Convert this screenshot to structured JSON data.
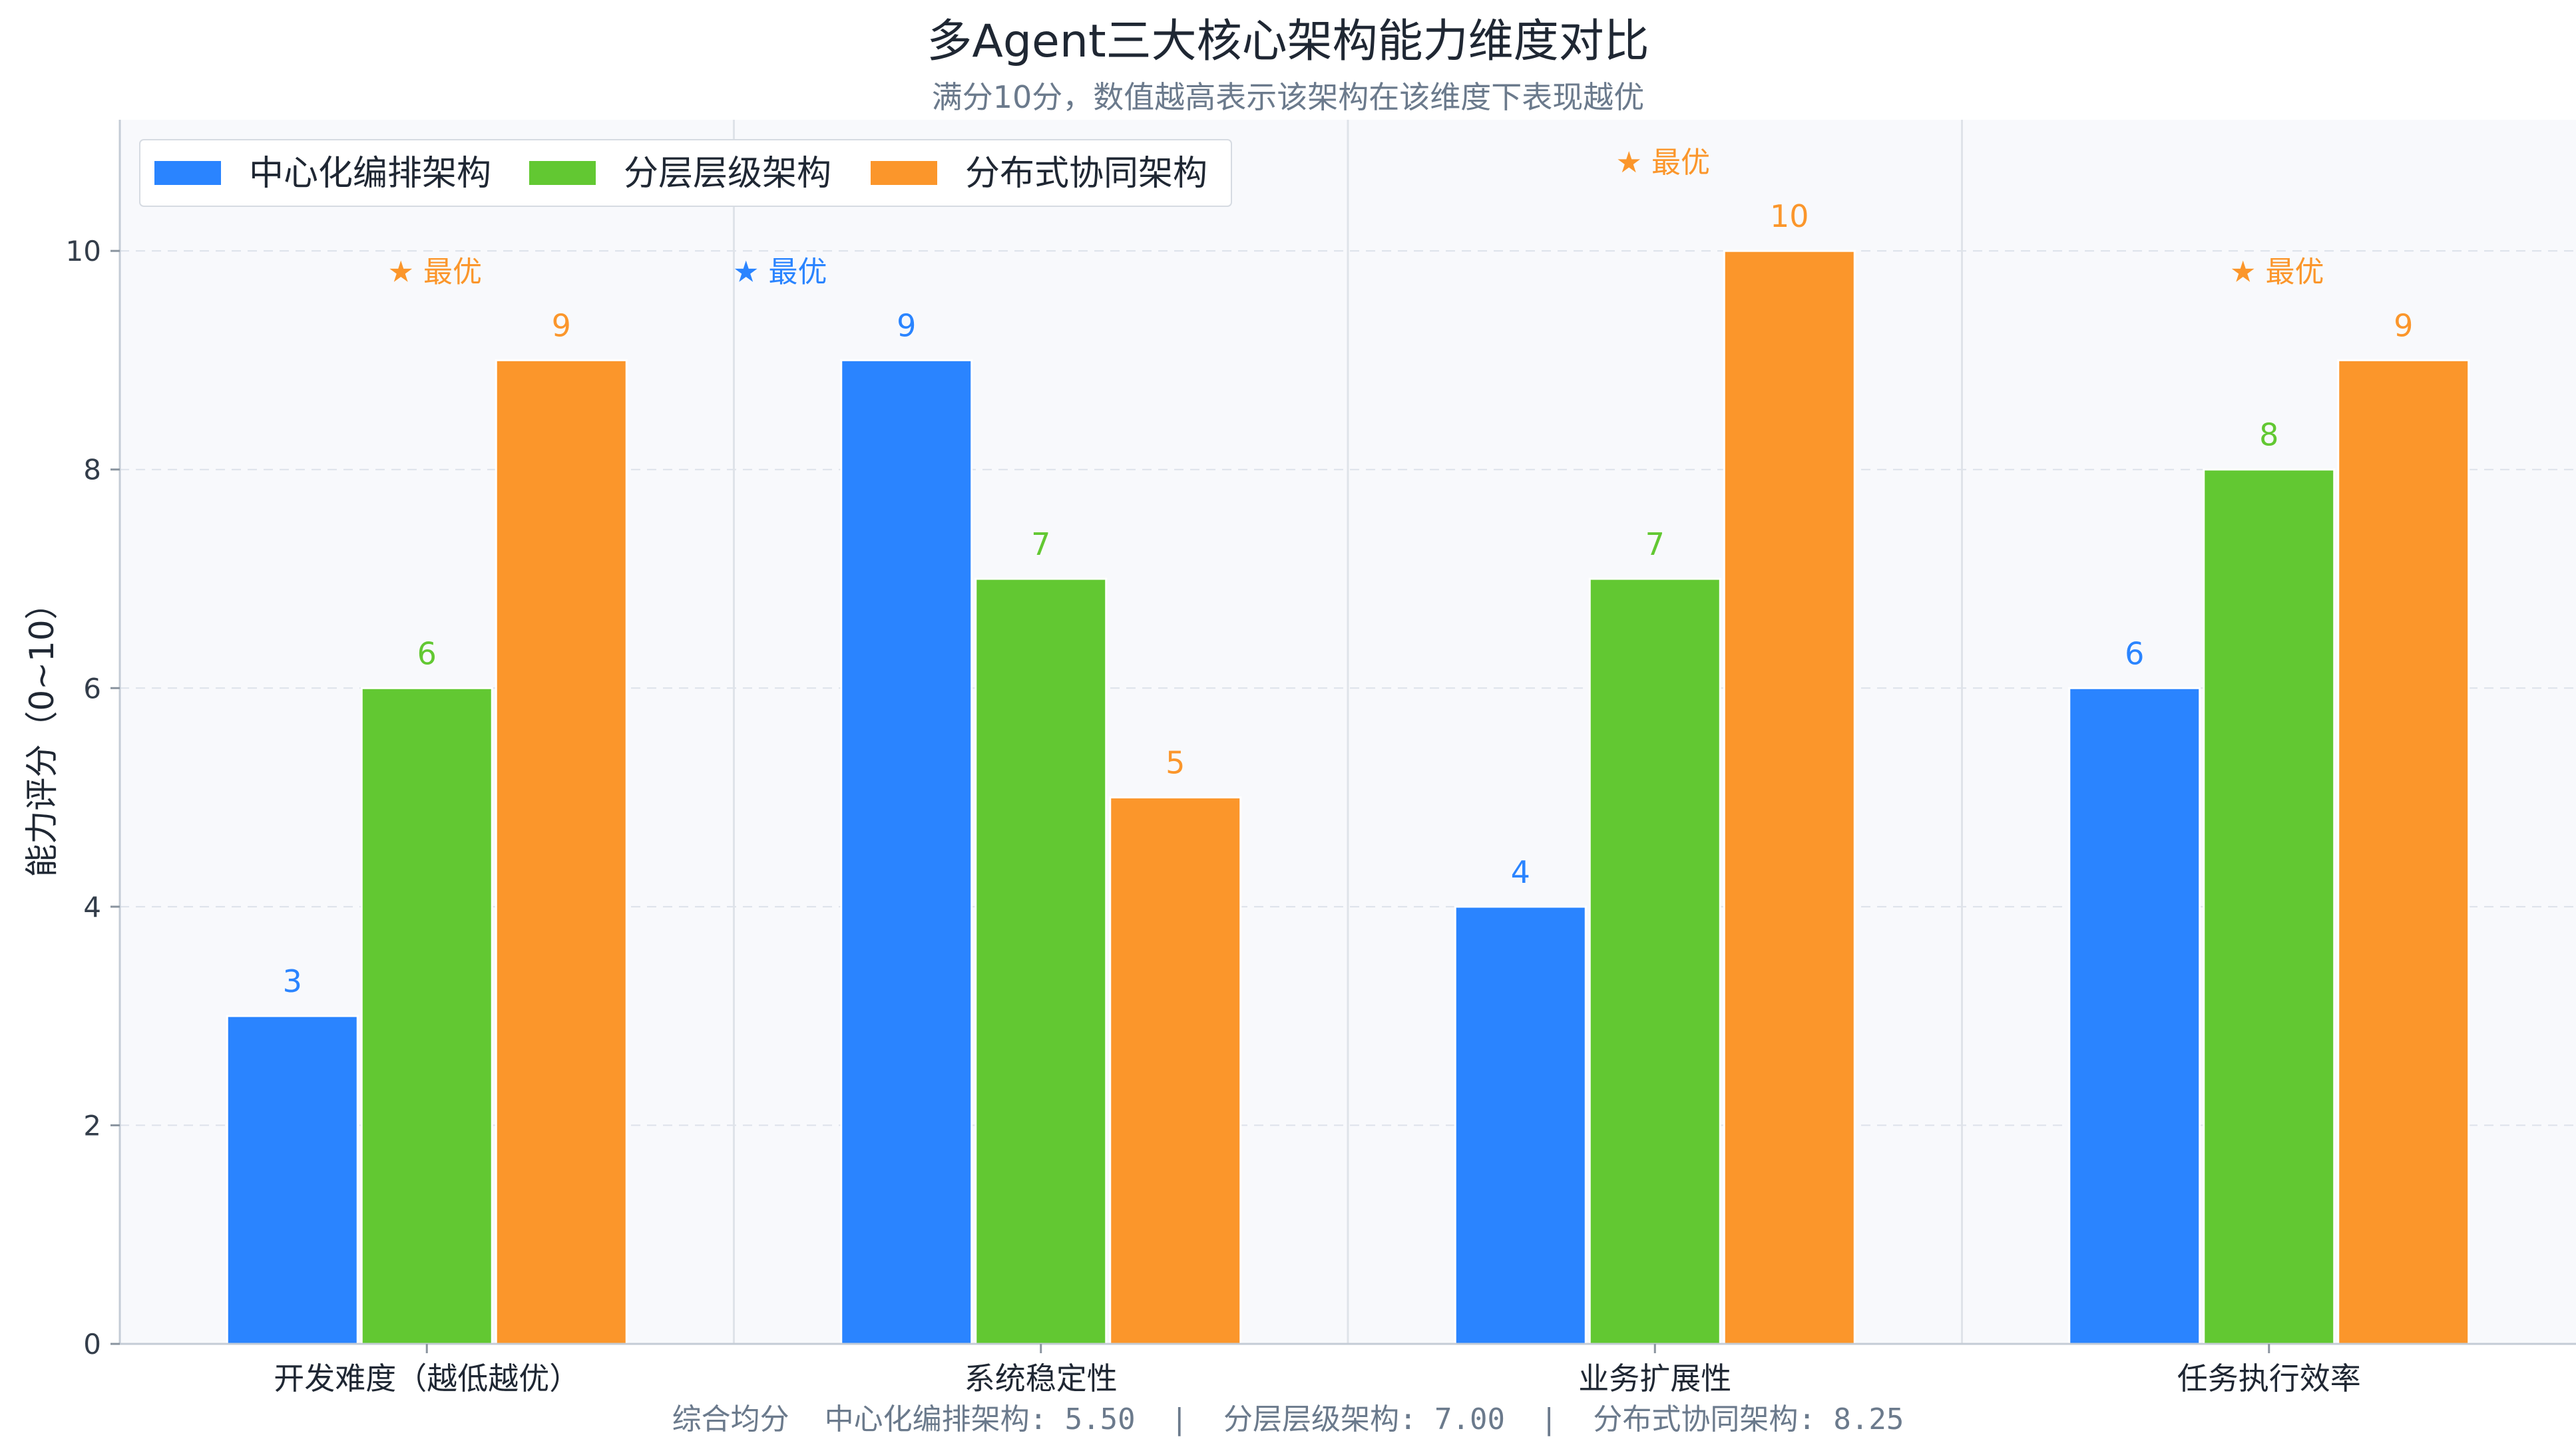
{
  "chart_data": {
    "type": "bar",
    "title": "多Agent三大核心架构能力维度对比",
    "subtitle": "满分10分，数值越高表示该架构在该维度下表现越优",
    "ylabel": "能力评分（0~10）",
    "xlabel": "",
    "ylim": [
      0,
      11.2
    ],
    "yticks": [
      0,
      2,
      4,
      6,
      8,
      10
    ],
    "grid": true,
    "legend_position": "top-left",
    "categories": [
      "开发难度（越低越优）",
      "系统稳定性",
      "业务扩展性",
      "任务执行效率"
    ],
    "series": [
      {
        "name": "中心化编排架构",
        "color": "#2a84ff",
        "values": [
          3,
          9,
          4,
          6
        ]
      },
      {
        "name": "分层层级架构",
        "color": "#62c832",
        "values": [
          6,
          7,
          7,
          8
        ]
      },
      {
        "name": "分布式协同架构",
        "color": "#fb962b",
        "values": [
          9,
          5,
          10,
          9
        ]
      }
    ],
    "best_marker": {
      "label": "★ 最优",
      "series_index": [
        2,
        0,
        2,
        2
      ]
    },
    "footer": "综合均分  中心化编排架构: 5.50  |  分层层级架构: 7.00  |  分布式协同架构: 8.25"
  }
}
